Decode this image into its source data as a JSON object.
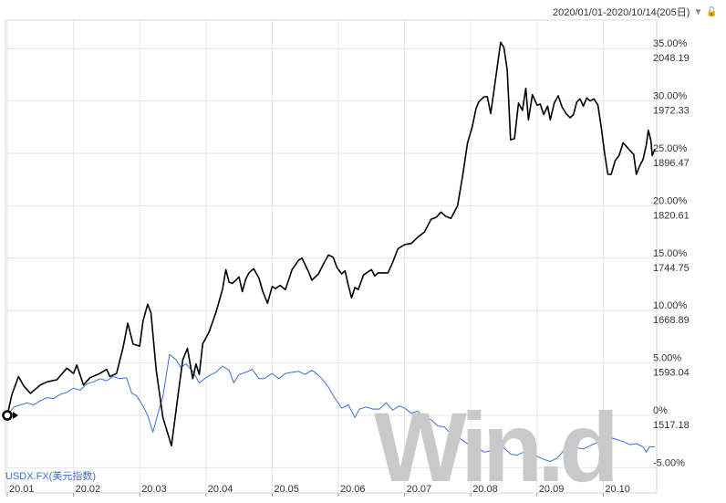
{
  "header": {
    "date_range": "2020/01/01-2020/10/14(205日)"
  },
  "watermark": "Win.d",
  "chart_data": {
    "type": "line",
    "x_tick_labels": [
      "20.01",
      "20.02",
      "20.03",
      "20.04",
      "20.05",
      "20.06",
      "20.07",
      "20.08",
      "20.09",
      "20.10"
    ],
    "y_ticks": [
      {
        "pct": 35,
        "pct_label": "35.00%",
        "value_label": "2048.19"
      },
      {
        "pct": 30,
        "pct_label": "30.00%",
        "value_label": "1972.33"
      },
      {
        "pct": 25,
        "pct_label": "25.00%",
        "value_label": "1896.47"
      },
      {
        "pct": 20,
        "pct_label": "20.00%",
        "value_label": "1820.61"
      },
      {
        "pct": 15,
        "pct_label": "15.00%",
        "value_label": "1744.75"
      },
      {
        "pct": 10,
        "pct_label": "10.00%",
        "value_label": "1668.89"
      },
      {
        "pct": 5,
        "pct_label": "5.00%",
        "value_label": "1593.04"
      },
      {
        "pct": 0,
        "pct_label": "0%",
        "value_label": "1517.18"
      },
      {
        "pct": -5,
        "pct_label": "-5.00%",
        "value_label": ""
      }
    ],
    "ylim": [
      -6,
      37
    ],
    "xlim": [
      0,
      9.8
    ],
    "grid": true,
    "series": [
      {
        "name": "",
        "color": "#000000",
        "points": [
          [
            0,
            0
          ],
          [
            0.07,
            2.0
          ],
          [
            0.17,
            3.7
          ],
          [
            0.25,
            2.8
          ],
          [
            0.35,
            2.1
          ],
          [
            0.5,
            2.9
          ],
          [
            0.6,
            3.2
          ],
          [
            0.75,
            3.4
          ],
          [
            0.9,
            4.5
          ],
          [
            1.0,
            4.0
          ],
          [
            1.05,
            4.8
          ],
          [
            1.15,
            2.9
          ],
          [
            1.25,
            3.6
          ],
          [
            1.4,
            4.0
          ],
          [
            1.5,
            4.4
          ],
          [
            1.55,
            3.7
          ],
          [
            1.65,
            4.0
          ],
          [
            1.75,
            6.5
          ],
          [
            1.82,
            8.8
          ],
          [
            1.9,
            6.8
          ],
          [
            2.0,
            6.6
          ],
          [
            2.05,
            9.0
          ],
          [
            2.12,
            10.6
          ],
          [
            2.17,
            9.8
          ],
          [
            2.25,
            4.3
          ],
          [
            2.35,
            -0.2
          ],
          [
            2.48,
            -2.9
          ],
          [
            2.58,
            2.0
          ],
          [
            2.65,
            5.3
          ],
          [
            2.72,
            6.4
          ],
          [
            2.8,
            3.5
          ],
          [
            2.85,
            4.9
          ],
          [
            2.9,
            3.9
          ],
          [
            2.95,
            6.8
          ],
          [
            3.05,
            8.0
          ],
          [
            3.15,
            9.8
          ],
          [
            3.25,
            12.0
          ],
          [
            3.3,
            13.9
          ],
          [
            3.35,
            12.7
          ],
          [
            3.4,
            12.6
          ],
          [
            3.5,
            13.2
          ],
          [
            3.55,
            11.8
          ],
          [
            3.6,
            13.0
          ],
          [
            3.65,
            13.6
          ],
          [
            3.72,
            14.0
          ],
          [
            3.8,
            13.1
          ],
          [
            3.86,
            11.8
          ],
          [
            3.93,
            10.7
          ],
          [
            4.0,
            12.3
          ],
          [
            4.05,
            12.1
          ],
          [
            4.12,
            12.4
          ],
          [
            4.2,
            12.0
          ],
          [
            4.3,
            13.9
          ],
          [
            4.4,
            14.8
          ],
          [
            4.45,
            15.0
          ],
          [
            4.55,
            13.7
          ],
          [
            4.6,
            12.9
          ],
          [
            4.7,
            13.5
          ],
          [
            4.78,
            14.5
          ],
          [
            4.85,
            15.3
          ],
          [
            4.92,
            15.1
          ],
          [
            4.98,
            14.1
          ],
          [
            5.05,
            13.5
          ],
          [
            5.1,
            13.8
          ],
          [
            5.15,
            12.4
          ],
          [
            5.2,
            11.2
          ],
          [
            5.25,
            12.2
          ],
          [
            5.3,
            12.0
          ],
          [
            5.38,
            13.4
          ],
          [
            5.45,
            13.7
          ],
          [
            5.5,
            13.9
          ],
          [
            5.55,
            13.3
          ],
          [
            5.6,
            13.6
          ],
          [
            5.68,
            13.6
          ],
          [
            5.75,
            13.6
          ],
          [
            5.82,
            14.6
          ],
          [
            5.9,
            15.9
          ],
          [
            6.0,
            16.3
          ],
          [
            6.1,
            16.4
          ],
          [
            6.2,
            17.0
          ],
          [
            6.3,
            17.5
          ],
          [
            6.4,
            18.7
          ],
          [
            6.48,
            18.9
          ],
          [
            6.55,
            19.4
          ],
          [
            6.62,
            19.0
          ],
          [
            6.7,
            18.8
          ],
          [
            6.8,
            20.0
          ],
          [
            6.88,
            23.0
          ],
          [
            6.95,
            26.0
          ],
          [
            7.02,
            27.5
          ],
          [
            7.08,
            29.3
          ],
          [
            7.12,
            29.9
          ],
          [
            7.2,
            30.4
          ],
          [
            7.25,
            30.4
          ],
          [
            7.3,
            28.8
          ],
          [
            7.35,
            31.0
          ],
          [
            7.45,
            35.6
          ],
          [
            7.5,
            35.1
          ],
          [
            7.55,
            33.0
          ],
          [
            7.6,
            26.3
          ],
          [
            7.66,
            26.4
          ],
          [
            7.72,
            29.8
          ],
          [
            7.78,
            29.1
          ],
          [
            7.83,
            31.2
          ],
          [
            7.87,
            28.2
          ],
          [
            7.93,
            30.6
          ],
          [
            8.0,
            29.6
          ],
          [
            8.05,
            29.7
          ],
          [
            8.1,
            28.7
          ],
          [
            8.16,
            29.5
          ],
          [
            8.2,
            28.2
          ],
          [
            8.26,
            29.8
          ],
          [
            8.32,
            30.5
          ],
          [
            8.38,
            29.4
          ],
          [
            8.44,
            28.8
          ],
          [
            8.5,
            28.4
          ],
          [
            8.55,
            28.7
          ],
          [
            8.6,
            29.9
          ],
          [
            8.65,
            30.2
          ],
          [
            8.7,
            29.5
          ],
          [
            8.75,
            30.3
          ],
          [
            8.8,
            30.0
          ],
          [
            8.86,
            30.2
          ],
          [
            8.92,
            29.6
          ],
          [
            8.97,
            27.5
          ],
          [
            9.02,
            25.0
          ],
          [
            9.07,
            23.0
          ],
          [
            9.12,
            23.0
          ],
          [
            9.18,
            24.3
          ],
          [
            9.24,
            24.8
          ],
          [
            9.3,
            26.0
          ],
          [
            9.36,
            25.6
          ],
          [
            9.4,
            25.3
          ],
          [
            9.46,
            24.9
          ],
          [
            9.5,
            23.0
          ],
          [
            9.55,
            23.8
          ],
          [
            9.6,
            24.4
          ],
          [
            9.65,
            25.8
          ],
          [
            9.68,
            27.2
          ],
          [
            9.72,
            26.2
          ],
          [
            9.74,
            24.8
          ],
          [
            9.78,
            25.4
          ]
        ]
      },
      {
        "name": "USDX.FX(美元指数)",
        "color": "#3a6fdc",
        "points": [
          [
            0,
            0
          ],
          [
            0.1,
            0.8
          ],
          [
            0.2,
            1.0
          ],
          [
            0.3,
            1.2
          ],
          [
            0.4,
            1.0
          ],
          [
            0.5,
            1.4
          ],
          [
            0.6,
            1.7
          ],
          [
            0.7,
            1.6
          ],
          [
            0.8,
            2.0
          ],
          [
            0.9,
            2.2
          ],
          [
            1.0,
            2.6
          ],
          [
            1.1,
            2.4
          ],
          [
            1.2,
            3.0
          ],
          [
            1.3,
            3.2
          ],
          [
            1.4,
            3.5
          ],
          [
            1.5,
            3.3
          ],
          [
            1.6,
            3.7
          ],
          [
            1.7,
            3.5
          ],
          [
            1.8,
            3.6
          ],
          [
            1.88,
            2.1
          ],
          [
            1.95,
            1.9
          ],
          [
            2.05,
            0.9
          ],
          [
            2.12,
            0.0
          ],
          [
            2.2,
            -1.6
          ],
          [
            2.28,
            0.3
          ],
          [
            2.35,
            1.8
          ],
          [
            2.45,
            5.8
          ],
          [
            2.55,
            5.3
          ],
          [
            2.62,
            4.6
          ],
          [
            2.7,
            4.9
          ],
          [
            2.8,
            4.2
          ],
          [
            2.9,
            3.1
          ],
          [
            3.0,
            3.6
          ],
          [
            3.08,
            3.9
          ],
          [
            3.15,
            4.1
          ],
          [
            3.25,
            4.7
          ],
          [
            3.35,
            4.3
          ],
          [
            3.42,
            3.1
          ],
          [
            3.5,
            3.9
          ],
          [
            3.6,
            4.1
          ],
          [
            3.7,
            4.4
          ],
          [
            3.8,
            3.5
          ],
          [
            3.88,
            3.5
          ],
          [
            4.0,
            4.0
          ],
          [
            4.1,
            3.5
          ],
          [
            4.2,
            4.0
          ],
          [
            4.3,
            4.1
          ],
          [
            4.4,
            4.2
          ],
          [
            4.5,
            3.9
          ],
          [
            4.6,
            4.3
          ],
          [
            4.65,
            4.1
          ],
          [
            4.75,
            3.5
          ],
          [
            4.85,
            2.7
          ],
          [
            4.95,
            1.6
          ],
          [
            5.05,
            0.7
          ],
          [
            5.15,
            1.0
          ],
          [
            5.25,
            -0.2
          ],
          [
            5.32,
            0.6
          ],
          [
            5.42,
            0.8
          ],
          [
            5.52,
            0.6
          ],
          [
            5.62,
            0.6
          ],
          [
            5.72,
            1.2
          ],
          [
            5.82,
            0.5
          ],
          [
            5.92,
            0.9
          ],
          [
            6.0,
            0.7
          ],
          [
            6.1,
            0.2
          ],
          [
            6.2,
            0.4
          ],
          [
            6.3,
            -0.3
          ],
          [
            6.4,
            -0.4
          ],
          [
            6.5,
            -1.0
          ],
          [
            6.6,
            -1.1
          ],
          [
            6.7,
            -1.8
          ],
          [
            6.8,
            -2.0
          ],
          [
            6.9,
            -2.5
          ],
          [
            7.0,
            -2.9
          ],
          [
            7.1,
            -3.1
          ],
          [
            7.2,
            -3.5
          ],
          [
            7.3,
            -3.4
          ],
          [
            7.4,
            -3.3
          ],
          [
            7.5,
            -3.1
          ],
          [
            7.6,
            -3.7
          ],
          [
            7.7,
            -3.8
          ],
          [
            7.8,
            -3.5
          ],
          [
            7.9,
            -3.7
          ],
          [
            8.0,
            -3.9
          ],
          [
            8.1,
            -4.2
          ],
          [
            8.2,
            -4.4
          ],
          [
            8.3,
            -4.1
          ],
          [
            8.4,
            -3.4
          ],
          [
            8.5,
            -3.5
          ],
          [
            8.6,
            -3.1
          ],
          [
            8.7,
            -3.2
          ],
          [
            8.8,
            -2.9
          ],
          [
            8.9,
            -2.6
          ],
          [
            9.0,
            -2.4
          ],
          [
            9.1,
            -2.1
          ],
          [
            9.2,
            -2.3
          ],
          [
            9.3,
            -2.5
          ],
          [
            9.4,
            -2.8
          ],
          [
            9.5,
            -2.7
          ],
          [
            9.6,
            -3.0
          ],
          [
            9.65,
            -3.5
          ],
          [
            9.7,
            -3.0
          ],
          [
            9.78,
            -3.0
          ]
        ]
      }
    ]
  }
}
